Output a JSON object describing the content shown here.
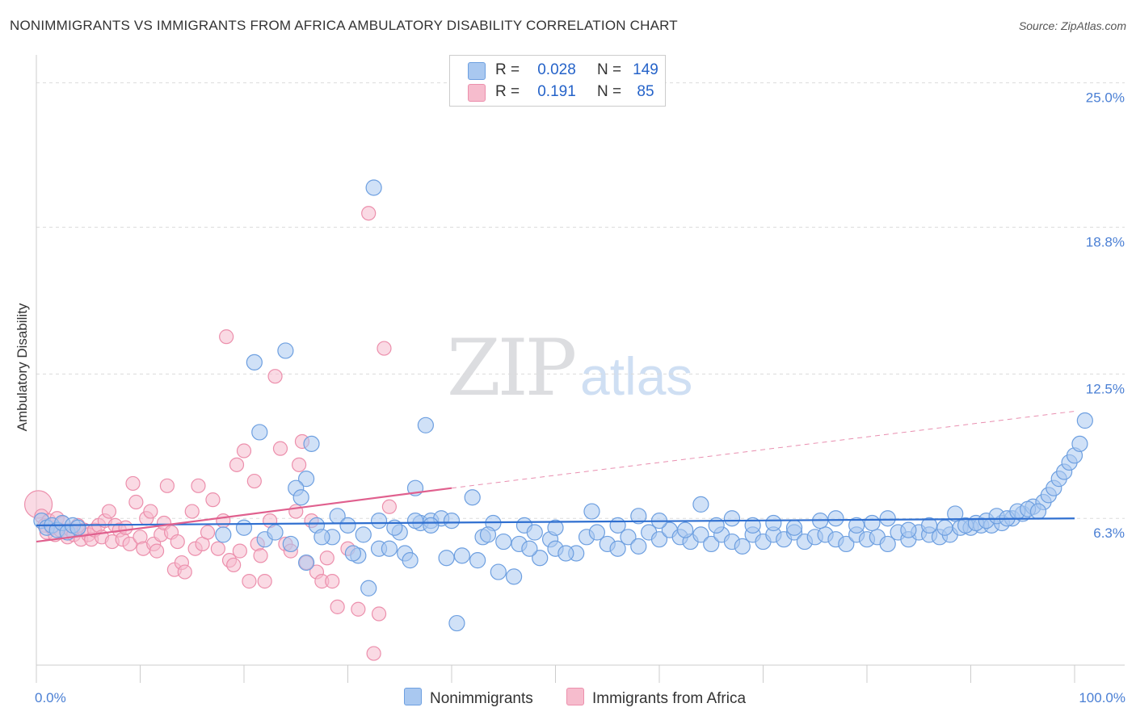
{
  "header": {
    "title": "NONIMMIGRANTS VS IMMIGRANTS FROM AFRICA AMBULATORY DISABILITY CORRELATION CHART",
    "source": "Source: ZipAtlas.com"
  },
  "watermark": {
    "zip": "ZIP",
    "atlas": "atlas"
  },
  "legend": {
    "rows": [
      {
        "r_label": "R =",
        "r_value": "0.028",
        "n_label": "N =",
        "n_value": "149",
        "color": "#a9c8f0"
      },
      {
        "r_label": "R =",
        "r_value": "0.191",
        "n_label": "N =",
        "n_value": "85",
        "color": "#f6bccd"
      }
    ]
  },
  "bottom_legend": {
    "series1": "Nonimmigrants",
    "series2": "Immigrants from Africa"
  },
  "colors": {
    "blue_fill": "#a9c8f0",
    "blue_stroke": "#6d9fe0",
    "blue_line": "#2f6fd0",
    "pink_fill": "#f6bccd",
    "pink_stroke": "#ec8fac",
    "pink_line": "#e0608e",
    "grid": "#dcdcdc",
    "tick_text": "#4a7fd4"
  },
  "chart_data": {
    "type": "scatter",
    "title": "NONIMMIGRANTS VS IMMIGRANTS FROM AFRICA AMBULATORY DISABILITY CORRELATION CHART",
    "xlabel": "",
    "ylabel": "Ambulatory Disability",
    "xlim": [
      0,
      100
    ],
    "ylim": [
      0,
      26.2
    ],
    "x_tick_labels": [
      "0.0%",
      "100.0%"
    ],
    "y_ticks": [
      6.3,
      12.5,
      18.8,
      25.0
    ],
    "y_tick_labels": [
      "6.3%",
      "12.5%",
      "18.8%",
      "25.0%"
    ],
    "grid": "horizontal dashed",
    "legend_position": "top-center",
    "series": [
      {
        "name": "Nonimmigrants",
        "r": 0.028,
        "n": 149,
        "trend": {
          "x0": 0,
          "y0": 6.0,
          "x1": 100,
          "y1": 6.3
        },
        "points": [
          [
            0.5,
            6.2
          ],
          [
            1,
            5.9
          ],
          [
            1.5,
            6.0
          ],
          [
            2,
            5.8
          ],
          [
            2.5,
            6.1
          ],
          [
            3,
            5.7
          ],
          [
            3.5,
            6.0
          ],
          [
            4,
            5.9
          ],
          [
            32.5,
            20.5
          ],
          [
            21,
            13.0
          ],
          [
            24,
            13.5
          ],
          [
            21.5,
            10.0
          ],
          [
            26.5,
            9.5
          ],
          [
            37.5,
            10.3
          ],
          [
            26,
            8.0
          ],
          [
            25,
            7.6
          ],
          [
            25.5,
            7.2
          ],
          [
            36.5,
            7.6
          ],
          [
            42,
            7.2
          ],
          [
            27,
            6.0
          ],
          [
            29,
            6.4
          ],
          [
            33,
            6.2
          ],
          [
            35,
            5.7
          ],
          [
            37,
            6.1
          ],
          [
            38,
            6.2
          ],
          [
            39,
            6.3
          ],
          [
            40,
            6.2
          ],
          [
            44,
            6.1
          ],
          [
            47,
            6.0
          ],
          [
            28.5,
            5.5
          ],
          [
            31,
            4.7
          ],
          [
            30.5,
            4.8
          ],
          [
            33,
            5.0
          ],
          [
            34,
            5.0
          ],
          [
            35.5,
            4.8
          ],
          [
            36,
            4.5
          ],
          [
            41,
            4.7
          ],
          [
            42.5,
            4.5
          ],
          [
            44.5,
            4.0
          ],
          [
            46,
            3.8
          ],
          [
            43,
            5.5
          ],
          [
            45,
            5.3
          ],
          [
            46.5,
            5.2
          ],
          [
            48,
            5.7
          ],
          [
            49.5,
            5.4
          ],
          [
            50,
            5.0
          ],
          [
            48.5,
            4.6
          ],
          [
            52,
            4.8
          ],
          [
            53,
            5.5
          ],
          [
            54,
            5.7
          ],
          [
            55,
            5.2
          ],
          [
            56,
            5.0
          ],
          [
            57,
            5.5
          ],
          [
            58,
            5.1
          ],
          [
            59,
            5.7
          ],
          [
            60,
            5.4
          ],
          [
            61,
            5.8
          ],
          [
            62,
            5.5
          ],
          [
            63,
            5.3
          ],
          [
            64,
            5.6
          ],
          [
            65,
            5.2
          ],
          [
            66,
            5.6
          ],
          [
            67,
            5.3
          ],
          [
            68,
            5.1
          ],
          [
            69,
            5.6
          ],
          [
            70,
            5.3
          ],
          [
            71,
            5.6
          ],
          [
            72,
            5.4
          ],
          [
            73,
            5.7
          ],
          [
            74,
            5.3
          ],
          [
            75,
            5.5
          ],
          [
            76,
            5.6
          ],
          [
            77,
            5.4
          ],
          [
            78,
            5.2
          ],
          [
            79,
            5.6
          ],
          [
            80,
            5.4
          ],
          [
            81,
            5.5
          ],
          [
            82,
            5.2
          ],
          [
            83,
            5.7
          ],
          [
            84,
            5.4
          ],
          [
            85,
            5.7
          ],
          [
            86,
            5.6
          ],
          [
            87,
            5.5
          ],
          [
            88,
            5.6
          ],
          [
            89,
            5.9
          ],
          [
            90,
            5.9
          ],
          [
            91,
            6.0
          ],
          [
            92,
            6.0
          ],
          [
            93,
            6.1
          ],
          [
            94,
            6.3
          ],
          [
            95,
            6.5
          ],
          [
            96,
            6.8
          ],
          [
            97,
            7.0
          ],
          [
            97.5,
            7.3
          ],
          [
            98,
            7.6
          ],
          [
            98.5,
            8.0
          ],
          [
            99,
            8.3
          ],
          [
            99.5,
            8.7
          ],
          [
            100,
            9.0
          ],
          [
            100.5,
            9.5
          ],
          [
            101,
            10.5
          ],
          [
            32,
            3.3
          ],
          [
            40.5,
            1.8
          ],
          [
            26,
            4.4
          ],
          [
            38,
            6.0
          ],
          [
            30,
            6.0
          ],
          [
            39.5,
            4.6
          ],
          [
            36.5,
            6.2
          ],
          [
            43.5,
            5.6
          ],
          [
            47.5,
            5.0
          ],
          [
            50,
            5.9
          ],
          [
            51,
            4.8
          ],
          [
            53.5,
            6.6
          ],
          [
            56,
            6.0
          ],
          [
            58,
            6.4
          ],
          [
            60,
            6.2
          ],
          [
            62.5,
            5.8
          ],
          [
            64,
            6.9
          ],
          [
            65.5,
            6.0
          ],
          [
            67,
            6.3
          ],
          [
            69,
            6.0
          ],
          [
            71,
            6.1
          ],
          [
            73,
            5.9
          ],
          [
            75.5,
            6.2
          ],
          [
            77,
            6.3
          ],
          [
            79,
            6.0
          ],
          [
            80.5,
            6.1
          ],
          [
            82,
            6.3
          ],
          [
            84,
            5.8
          ],
          [
            86,
            6.0
          ],
          [
            87.5,
            5.9
          ],
          [
            88.5,
            6.5
          ],
          [
            89.5,
            6.0
          ],
          [
            90.5,
            6.1
          ],
          [
            91.5,
            6.2
          ],
          [
            92.5,
            6.4
          ],
          [
            93.5,
            6.3
          ],
          [
            94.5,
            6.6
          ],
          [
            95.5,
            6.7
          ],
          [
            96.5,
            6.6
          ],
          [
            18,
            5.6
          ],
          [
            20,
            5.9
          ],
          [
            22,
            5.4
          ],
          [
            23,
            5.7
          ],
          [
            24.5,
            5.2
          ],
          [
            27.5,
            5.5
          ],
          [
            31.5,
            5.6
          ],
          [
            34.5,
            5.9
          ]
        ]
      },
      {
        "name": "Immigrants from Africa",
        "r": 0.191,
        "n": 85,
        "trend": {
          "x0": 0,
          "y0": 5.3,
          "x1": 40,
          "y1": 7.6
        },
        "trend_extension": {
          "x0": 40,
          "y0": 7.6,
          "x1": 100,
          "y1": 10.9
        },
        "points": [
          [
            0.2,
            6.9
          ],
          [
            0.5,
            6.4
          ],
          [
            0.8,
            6.0
          ],
          [
            1,
            5.7
          ],
          [
            1.2,
            6.2
          ],
          [
            1.5,
            5.9
          ],
          [
            1.8,
            5.6
          ],
          [
            2,
            6.3
          ],
          [
            2.3,
            5.8
          ],
          [
            2.6,
            6.1
          ],
          [
            3,
            5.5
          ],
          [
            3.3,
            5.8
          ],
          [
            3.6,
            5.6
          ],
          [
            4,
            6.0
          ],
          [
            4.3,
            5.4
          ],
          [
            4.6,
            5.8
          ],
          [
            5,
            5.6
          ],
          [
            5.3,
            5.4
          ],
          [
            5.6,
            5.8
          ],
          [
            6,
            6.0
          ],
          [
            6.3,
            5.5
          ],
          [
            6.6,
            6.2
          ],
          [
            7,
            6.6
          ],
          [
            7.3,
            5.3
          ],
          [
            7.6,
            6.0
          ],
          [
            8,
            5.8
          ],
          [
            8.3,
            5.4
          ],
          [
            8.6,
            5.9
          ],
          [
            9,
            5.2
          ],
          [
            9.3,
            7.8
          ],
          [
            9.6,
            7.0
          ],
          [
            10,
            5.5
          ],
          [
            10.3,
            5.0
          ],
          [
            10.6,
            6.3
          ],
          [
            11,
            6.6
          ],
          [
            11.3,
            5.2
          ],
          [
            11.6,
            4.9
          ],
          [
            12,
            5.6
          ],
          [
            12.3,
            6.1
          ],
          [
            12.6,
            7.7
          ],
          [
            13,
            5.7
          ],
          [
            13.3,
            4.1
          ],
          [
            13.6,
            5.3
          ],
          [
            14,
            4.4
          ],
          [
            14.3,
            4.0
          ],
          [
            15,
            6.6
          ],
          [
            15.3,
            5.0
          ],
          [
            15.6,
            7.7
          ],
          [
            16,
            5.2
          ],
          [
            16.5,
            5.7
          ],
          [
            17,
            7.1
          ],
          [
            17.5,
            5.0
          ],
          [
            18,
            6.2
          ],
          [
            18.3,
            14.1
          ],
          [
            18.6,
            4.5
          ],
          [
            19,
            4.3
          ],
          [
            19.3,
            8.6
          ],
          [
            19.6,
            4.9
          ],
          [
            20,
            9.2
          ],
          [
            20.5,
            3.6
          ],
          [
            21,
            7.9
          ],
          [
            21.3,
            5.2
          ],
          [
            21.6,
            4.7
          ],
          [
            22,
            3.6
          ],
          [
            22.5,
            6.2
          ],
          [
            23,
            12.4
          ],
          [
            23.5,
            9.3
          ],
          [
            24,
            5.2
          ],
          [
            24.5,
            4.9
          ],
          [
            25,
            6.6
          ],
          [
            25.3,
            8.6
          ],
          [
            25.6,
            9.6
          ],
          [
            26,
            4.4
          ],
          [
            26.5,
            6.2
          ],
          [
            27,
            4.0
          ],
          [
            27.5,
            3.6
          ],
          [
            28,
            4.6
          ],
          [
            28.5,
            3.6
          ],
          [
            29,
            2.5
          ],
          [
            30,
            5.0
          ],
          [
            31,
            2.4
          ],
          [
            32,
            19.4
          ],
          [
            32.5,
            0.5
          ],
          [
            33,
            2.2
          ],
          [
            33.5,
            13.6
          ],
          [
            34,
            6.8
          ]
        ]
      }
    ]
  }
}
